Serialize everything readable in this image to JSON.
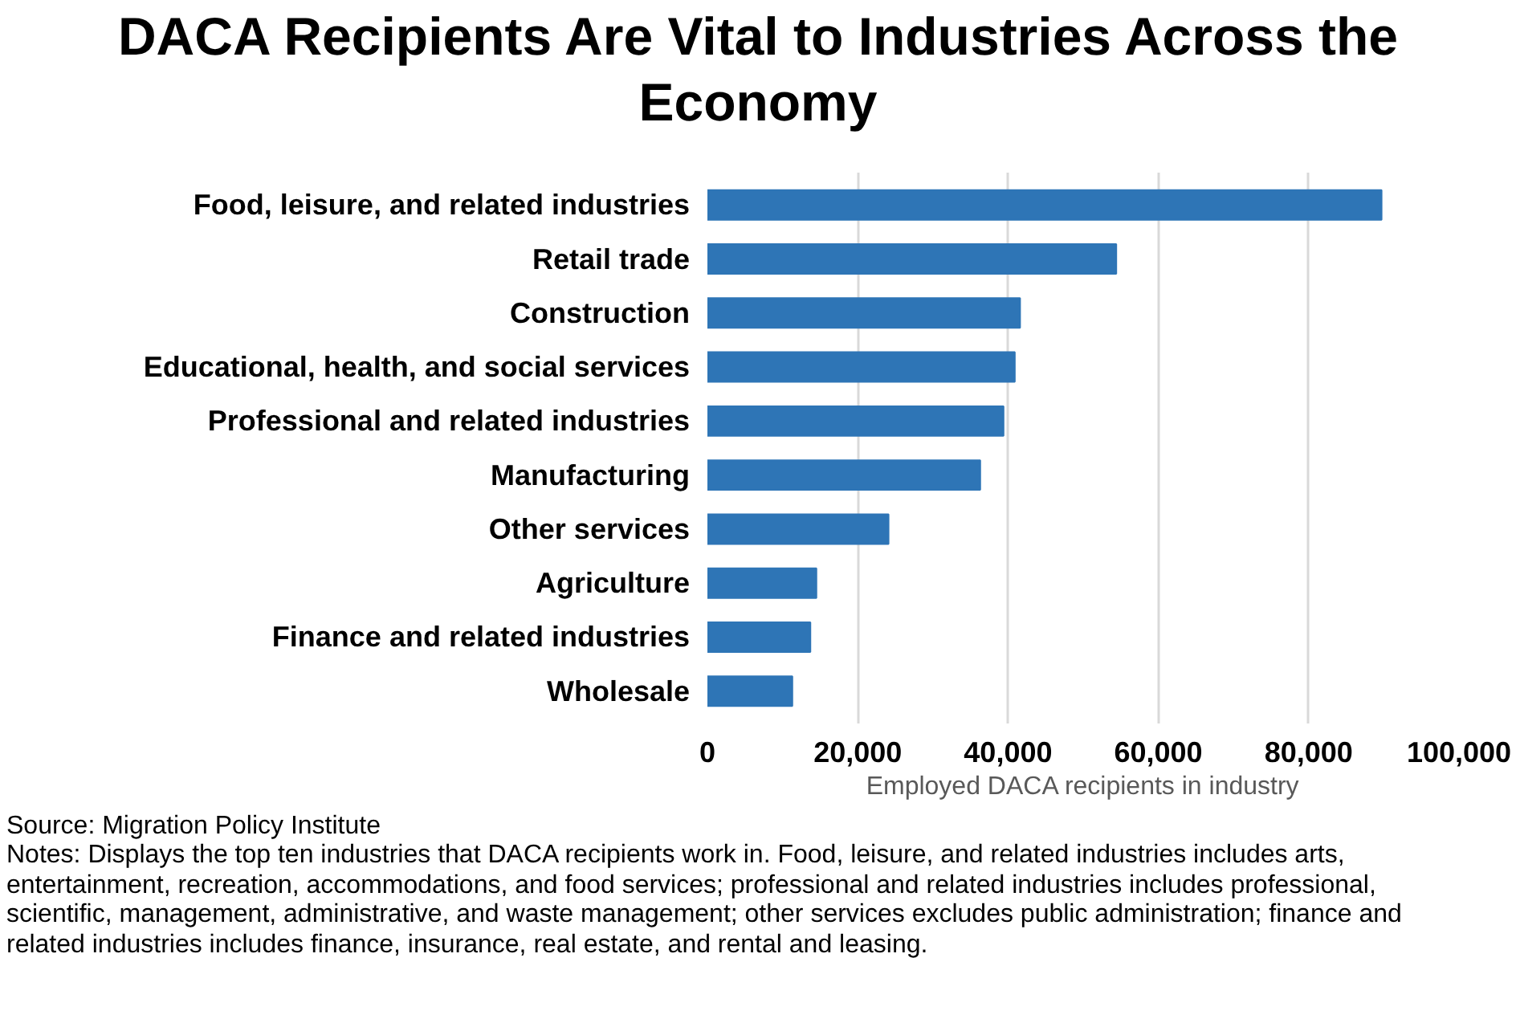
{
  "chart_data": {
    "type": "bar",
    "orientation": "horizontal",
    "title": "DACA Recipients Are Vital to Industries Across the Economy",
    "xlabel": "Employed DACA recipients in industry",
    "categories": [
      "Food, leisure, and related industries",
      "Retail trade",
      "Construction",
      "Educational, health, and social services",
      "Professional and related industries",
      "Manufacturing",
      "Other services",
      "Agriculture",
      "Finance and related industries",
      "Wholesale"
    ],
    "values": [
      89700,
      54400,
      41600,
      40900,
      39400,
      36300,
      24100,
      14500,
      13700,
      11300
    ],
    "color": "#2e75b6",
    "xlim": [
      0,
      100000
    ],
    "xticks": [
      0,
      {
        "value": 20000,
        "label": "20,000"
      },
      {
        "value": 40000,
        "label": "40,000"
      },
      {
        "value": 60000,
        "label": "60,000"
      },
      {
        "value": 80000,
        "label": "80,000"
      },
      {
        "value": 100000,
        "label": "100,000"
      }
    ],
    "grid": "x",
    "annotations": [
      "Source: Migration Policy Institute",
      "Notes: Displays the top ten industries that DACA recipients work in. Food, leisure, and related industries includes arts, entertainment, recreation, accommodations, and food services; professional and related industries includes professional, scientific, management, administrative, and waste management; other services excludes public administration; finance and related industries includes finance, insurance, real estate, and rental and leasing."
    ]
  }
}
